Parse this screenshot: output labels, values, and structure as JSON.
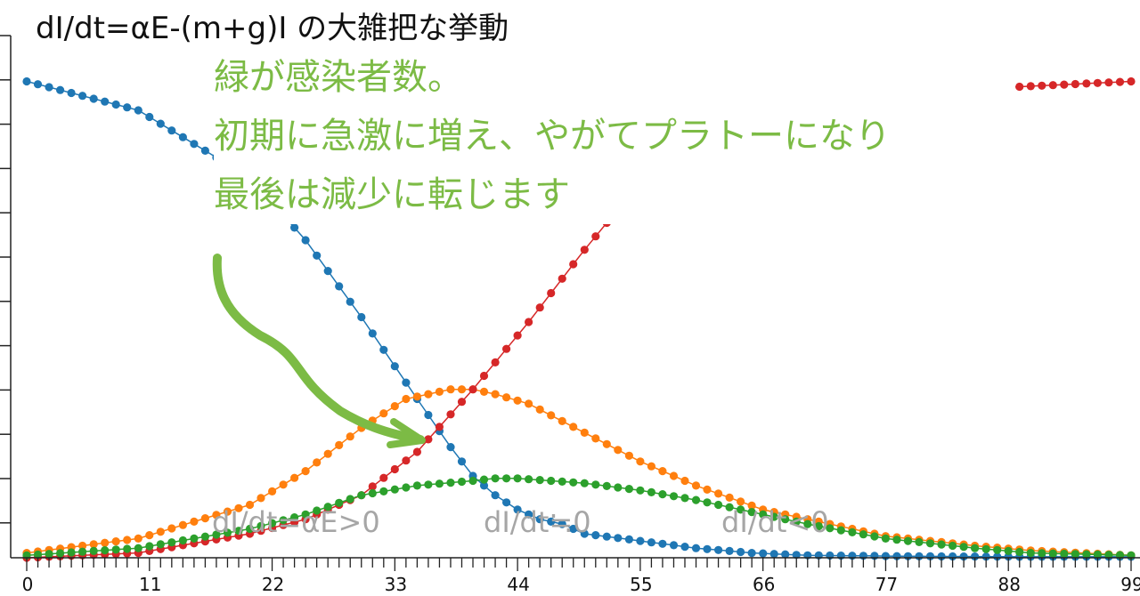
{
  "title": "dI/dt=αE-(m+g)I の大雑把な挙動",
  "annotation": {
    "lines": [
      "緑が感染者数。",
      "初期に急激に増え、やがてプラトーになり",
      "最後は減少に転じます"
    ],
    "color": "#7cbb45"
  },
  "phase_labels": [
    "dI/dt=αE>0",
    "dI/dt≒0",
    "dI/dt<0"
  ],
  "chart_data": {
    "type": "line",
    "x_ticks": [
      0,
      11,
      22,
      33,
      44,
      55,
      66,
      77,
      88,
      99
    ],
    "xlim": [
      0,
      99
    ],
    "ylim": [
      0,
      1.1
    ],
    "grid": false,
    "markers": true,
    "series": [
      {
        "color": "#1f77b4",
        "x": [
          0,
          10,
          20,
          25,
          30,
          35,
          38,
          40,
          42,
          44,
          46,
          48,
          50,
          55,
          60,
          65,
          70,
          80,
          90,
          99
        ],
        "values": [
          0.99,
          0.93,
          0.79,
          0.66,
          0.5,
          0.33,
          0.23,
          0.17,
          0.13,
          0.1,
          0.08,
          0.07,
          0.05,
          0.035,
          0.02,
          0.01,
          0.005,
          0.003,
          0.002,
          0.002
        ]
      },
      {
        "color": "#ff7f0e",
        "x": [
          0,
          10,
          20,
          25,
          30,
          34,
          38,
          40,
          42,
          45,
          50,
          55,
          60,
          66,
          70,
          77,
          85,
          90,
          99
        ],
        "values": [
          0.01,
          0.04,
          0.11,
          0.18,
          0.27,
          0.33,
          0.35,
          0.35,
          0.34,
          0.32,
          0.26,
          0.2,
          0.15,
          0.1,
          0.08,
          0.045,
          0.025,
          0.015,
          0.005
        ]
      },
      {
        "color": "#d62728",
        "x": [
          0,
          10,
          15,
          20,
          25,
          30,
          35,
          40,
          45,
          50,
          55,
          60,
          70,
          80,
          90,
          99
        ],
        "values": [
          0.0,
          0.01,
          0.03,
          0.05,
          0.08,
          0.13,
          0.22,
          0.35,
          0.49,
          0.64,
          0.78,
          0.87,
          0.95,
          0.97,
          0.98,
          0.99
        ]
      },
      {
        "color": "#2ca02c",
        "x": [
          0,
          10,
          20,
          25,
          30,
          35,
          40,
          42,
          44,
          47,
          50,
          55,
          60,
          66,
          70,
          77,
          85,
          90,
          99
        ],
        "values": [
          0.005,
          0.02,
          0.06,
          0.09,
          0.13,
          0.15,
          0.16,
          0.165,
          0.165,
          0.16,
          0.155,
          0.14,
          0.12,
          0.09,
          0.07,
          0.04,
          0.02,
          0.01,
          0.005
        ]
      }
    ]
  }
}
